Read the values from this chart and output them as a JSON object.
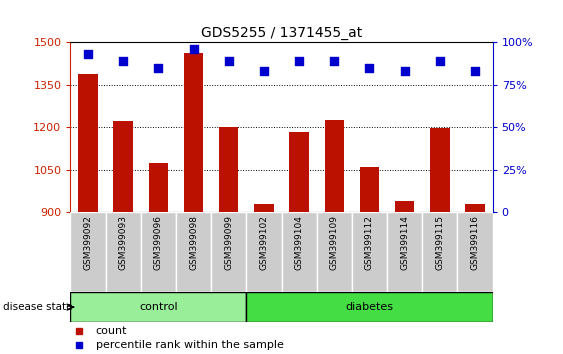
{
  "title": "GDS5255 / 1371455_at",
  "samples": [
    "GSM399092",
    "GSM399093",
    "GSM399096",
    "GSM399098",
    "GSM399099",
    "GSM399102",
    "GSM399104",
    "GSM399109",
    "GSM399112",
    "GSM399114",
    "GSM399115",
    "GSM399116"
  ],
  "counts": [
    1390,
    1222,
    1073,
    1463,
    1202,
    928,
    1185,
    1228,
    1062,
    940,
    1197,
    928
  ],
  "percentiles": [
    93,
    89,
    85,
    96,
    89,
    83,
    89,
    89,
    85,
    83,
    89,
    83
  ],
  "bar_color": "#bb1100",
  "dot_color": "#0000cc",
  "ylim_left": [
    900,
    1500
  ],
  "ylim_right": [
    0,
    100
  ],
  "yticks_left": [
    900,
    1050,
    1200,
    1350,
    1500
  ],
  "yticks_right": [
    0,
    25,
    50,
    75,
    100
  ],
  "groups": [
    {
      "label": "control",
      "indices": [
        0,
        1,
        2,
        3,
        4
      ],
      "color": "#99ee99"
    },
    {
      "label": "diabetes",
      "indices": [
        5,
        6,
        7,
        8,
        9,
        10,
        11
      ],
      "color": "#44dd44"
    }
  ],
  "disease_state_label": "disease state",
  "legend_count_label": "count",
  "legend_pct_label": "percentile rank within the sample",
  "tick_color_left": "#cc2200",
  "tick_color_right": "#0000cc",
  "bar_width": 0.55,
  "sample_area_bg": "#cccccc",
  "plot_bg": "#ffffff"
}
